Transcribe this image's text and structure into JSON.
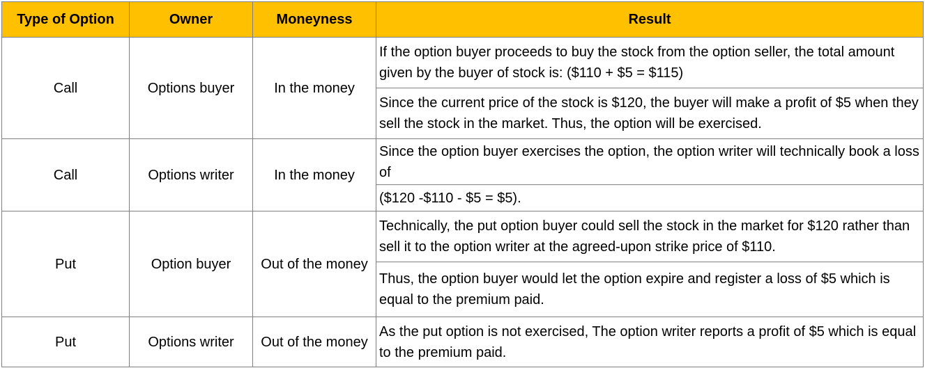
{
  "colors": {
    "header_background": "#FFC000",
    "border": "#7F7F7F",
    "text": "#000000"
  },
  "headers": [
    "Type of Option",
    "Owner",
    "Moneyness",
    "Result"
  ],
  "rows": [
    {
      "type": "Call",
      "owner": "Options buyer",
      "moneyness": "In the money",
      "results": [
        "If the option buyer proceeds to buy the stock from the option seller, the total amount given by the buyer of stock is: ($110 + $5 = $115)",
        "Since the current price of the stock is $120, the buyer will make a profit of $5 when they sell the stock in the market. Thus, the option will be exercised."
      ]
    },
    {
      "type": "Call",
      "owner": "Options writer",
      "moneyness": "In the money",
      "results": [
        "Since the option buyer exercises the option, the option writer will technically book a loss of",
        "($120 -$110 - $5 = $5)."
      ]
    },
    {
      "type": "Put",
      "owner": "Option buyer",
      "moneyness": "Out of the money",
      "results": [
        "Technically, the put option buyer could sell the stock in the market for $120 rather than sell it to the option writer at the agreed-upon strike price of $110.",
        "Thus, the option buyer would let the option expire and register a loss of $5 which is equal to the premium paid."
      ]
    },
    {
      "type": "Put",
      "owner": "Options writer",
      "moneyness": "Out of the money",
      "results": [
        "As the put option is not exercised, The option writer reports a profit of $5 which is equal to the premium paid."
      ]
    }
  ]
}
